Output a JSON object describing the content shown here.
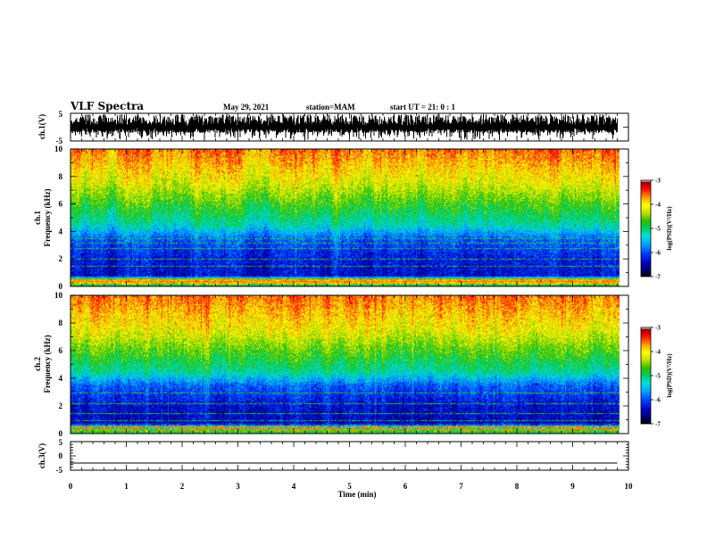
{
  "header": {
    "title": "VLF Spectra",
    "date": "May 29, 2021",
    "station": "station=MAM",
    "start": "start  UT =   21: 0  : 1"
  },
  "chart_data": [
    {
      "type": "line",
      "panel": "ch1-waveform",
      "ylabel": "ch.1(V)",
      "ylim": [
        -5,
        5
      ],
      "yticks": [
        "5",
        "-5"
      ],
      "xlim": [
        0,
        10
      ],
      "signal_range": [
        -4.2,
        4.6
      ],
      "baseline": 0.5,
      "data_end_min": 9.8
    },
    {
      "type": "heatmap",
      "panel": "ch1-spectrogram",
      "ylabel_line1": "ch.1",
      "ylabel_line2": "Frequency (kHz)",
      "ylim": [
        0,
        10
      ],
      "yticks": [
        "0",
        "2",
        "4",
        "6",
        "8",
        "10"
      ],
      "xlim": [
        0,
        10
      ],
      "data_end_min": 9.8,
      "colorbar": {
        "label": "log(PSD)(V²/Hz)",
        "ticks": [
          "-3",
          "-4",
          "-5",
          "-6",
          "-7"
        ],
        "range": [
          -7,
          -3
        ]
      },
      "bands_khz": [
        0.3,
        0.5,
        1.5,
        2.0,
        2.8,
        3.2,
        3.5
      ],
      "profile": [
        {
          "f": 0.0,
          "psd": -5.3
        },
        {
          "f": 0.4,
          "psd": -3.3
        },
        {
          "f": 0.8,
          "psd": -6.5
        },
        {
          "f": 2.0,
          "psd": -6.4
        },
        {
          "f": 3.5,
          "psd": -6.0
        },
        {
          "f": 4.5,
          "psd": -5.2
        },
        {
          "f": 6.0,
          "psd": -4.6
        },
        {
          "f": 7.5,
          "psd": -4.0
        },
        {
          "f": 10.0,
          "psd": -3.3
        }
      ]
    },
    {
      "type": "heatmap",
      "panel": "ch2-spectrogram",
      "ylabel_line1": "ch.2",
      "ylabel_line2": "Frequency (kHz)",
      "ylim": [
        0,
        10
      ],
      "yticks": [
        "0",
        "2",
        "4",
        "6",
        "8",
        "10"
      ],
      "xlim": [
        0,
        10
      ],
      "data_end_min": 9.8,
      "colorbar": {
        "label": "log(PSD)(V²/Hz)",
        "ticks": [
          "-3",
          "-4",
          "-5",
          "-6",
          "-7"
        ],
        "range": [
          -7,
          -3
        ]
      },
      "bands_khz": [
        0.3,
        0.6,
        1.0,
        1.5,
        2.2,
        3.0
      ],
      "profile": [
        {
          "f": 0.0,
          "psd": -4.8
        },
        {
          "f": 0.3,
          "psd": -4.6
        },
        {
          "f": 0.8,
          "psd": -6.6
        },
        {
          "f": 2.0,
          "psd": -6.5
        },
        {
          "f": 3.5,
          "psd": -6.0
        },
        {
          "f": 4.5,
          "psd": -5.1
        },
        {
          "f": 6.0,
          "psd": -4.5
        },
        {
          "f": 7.5,
          "psd": -3.9
        },
        {
          "f": 10.0,
          "psd": -3.3
        }
      ]
    },
    {
      "type": "line",
      "panel": "ch3-waveform",
      "ylabel": "ch.3(V)",
      "ylim": [
        -5,
        5
      ],
      "yticks": [
        "5",
        "0",
        "-5"
      ],
      "xlim": [
        0,
        10
      ],
      "xlabel": "Time (min)",
      "xticks": [
        "0",
        "1",
        "2",
        "3",
        "4",
        "5",
        "6",
        "7",
        "8",
        "9",
        "10"
      ],
      "constant_value": -2.5,
      "data_end_min": 9.8
    }
  ],
  "colors": {
    "colormap": [
      "#000000",
      "#000060",
      "#0000c0",
      "#0040ff",
      "#00a0ff",
      "#00e0e0",
      "#00d060",
      "#30c000",
      "#c0e000",
      "#ffff00",
      "#ffc000",
      "#ff6000",
      "#ff0000",
      "#c00000",
      "#800000",
      "#ffffff"
    ]
  }
}
